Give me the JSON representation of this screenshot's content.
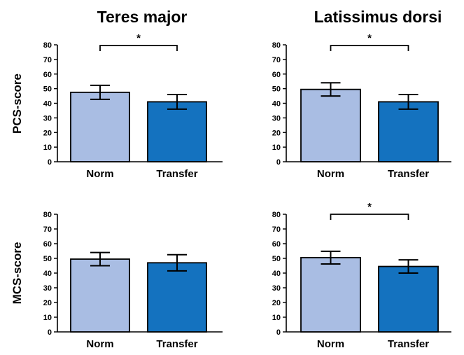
{
  "figure": {
    "row_labels": [
      "PCS-score",
      "MCS-score"
    ],
    "column_titles": [
      "Teres major",
      "Latissimus dorsi"
    ]
  },
  "colors": {
    "norm": "#a9bde3",
    "transfer": "#1472bf",
    "outline": "#000000"
  },
  "chart_data": [
    {
      "type": "bar",
      "title": "Teres major",
      "ylabel": "PCS-score",
      "categories": [
        "Norm",
        "Transfer"
      ],
      "values": [
        47.5,
        41
      ],
      "error": [
        4.8,
        5
      ],
      "ylim": [
        0,
        80
      ],
      "yticks": [
        0,
        10,
        20,
        30,
        40,
        50,
        60,
        70,
        80
      ],
      "significance": "*",
      "grid": false,
      "legend": "none"
    },
    {
      "type": "bar",
      "title": "Latissimus dorsi",
      "ylabel": "",
      "categories": [
        "Norm",
        "Transfer"
      ],
      "values": [
        49.5,
        41
      ],
      "error": [
        4.5,
        5
      ],
      "ylim": [
        0,
        80
      ],
      "yticks": [
        0,
        10,
        20,
        30,
        40,
        50,
        60,
        70,
        80
      ],
      "significance": "*",
      "grid": false,
      "legend": "none"
    },
    {
      "type": "bar",
      "title": "",
      "ylabel": "MCS-score",
      "categories": [
        "Norm",
        "Transfer"
      ],
      "values": [
        49.5,
        47
      ],
      "error": [
        4.5,
        5.5
      ],
      "ylim": [
        0,
        80
      ],
      "yticks": [
        0,
        10,
        20,
        30,
        40,
        50,
        60,
        70,
        80
      ],
      "significance": "",
      "grid": false,
      "legend": "none"
    },
    {
      "type": "bar",
      "title": "",
      "ylabel": "",
      "categories": [
        "Norm",
        "Transfer"
      ],
      "values": [
        50.5,
        44.5
      ],
      "error": [
        4.3,
        4.5
      ],
      "ylim": [
        0,
        80
      ],
      "yticks": [
        0,
        10,
        20,
        30,
        40,
        50,
        60,
        70,
        80
      ],
      "significance": "*",
      "grid": false,
      "legend": "none"
    }
  ]
}
